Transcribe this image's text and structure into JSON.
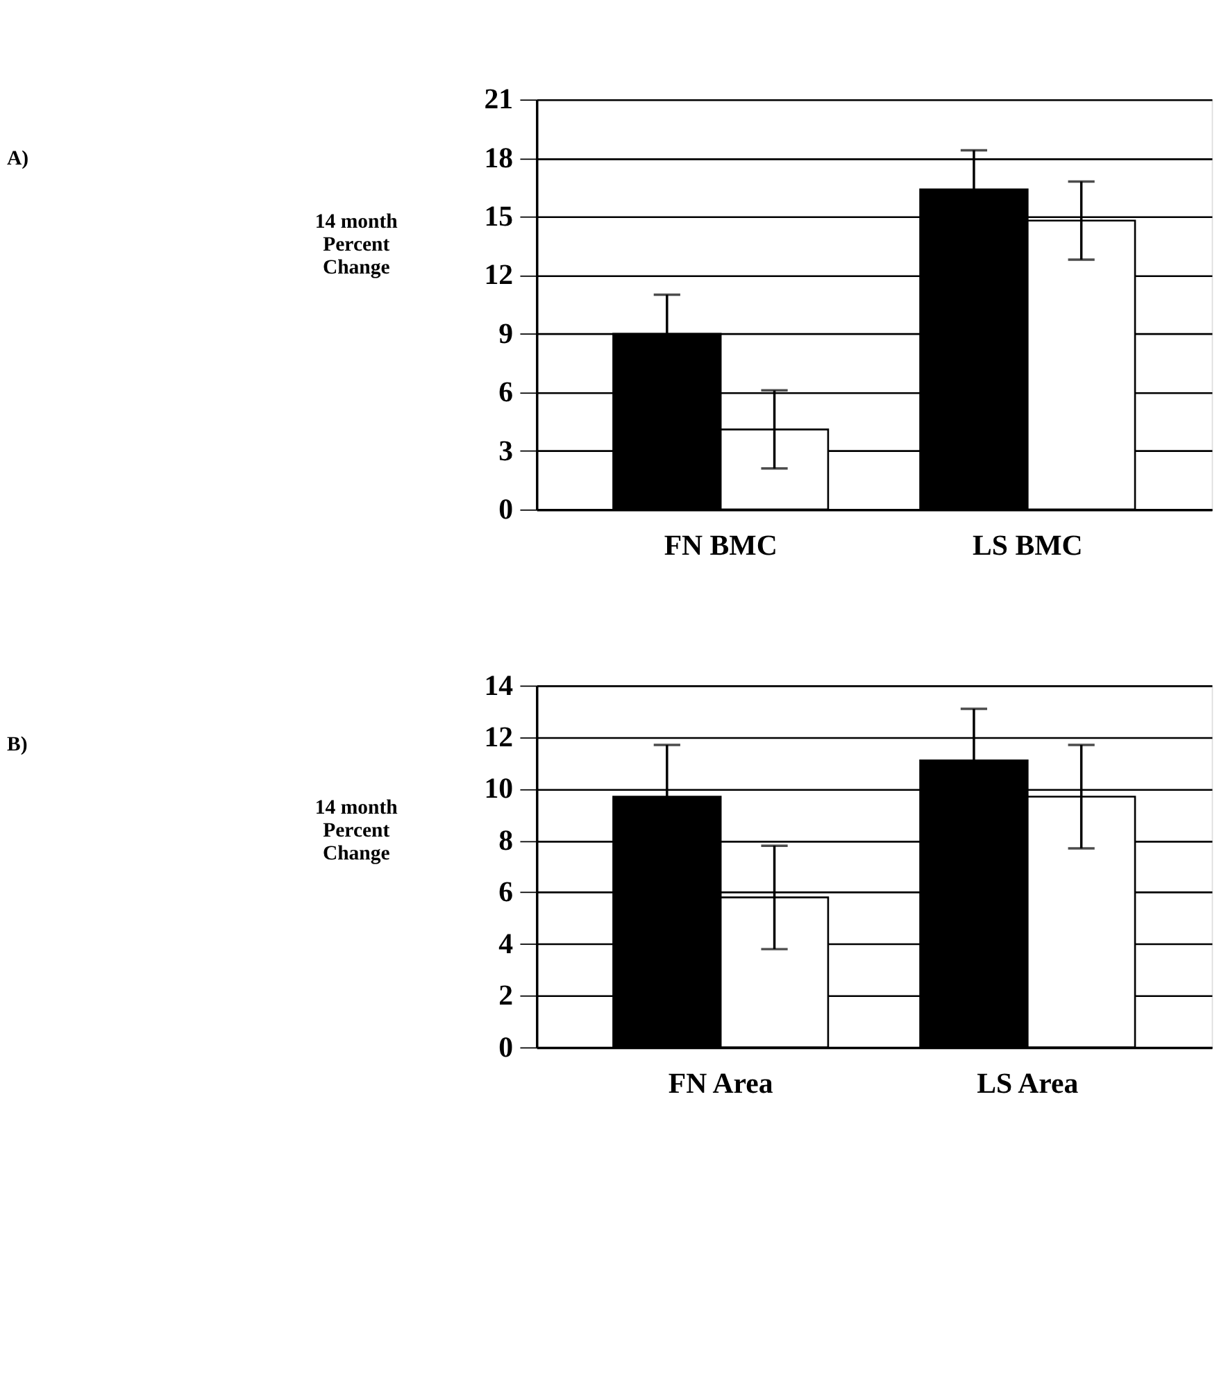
{
  "chart_data": [
    {
      "type": "bar",
      "annotations": [
        "A)"
      ],
      "ylabel": "14 month Percent Change",
      "categories": [
        "FN BMC",
        "LS BMC"
      ],
      "series": [
        {
          "color": "#000000",
          "values": [
            9.0,
            16.4
          ],
          "errors": [
            2.0,
            2.0
          ]
        },
        {
          "color": "#ffffff",
          "values": [
            4.1,
            14.8
          ],
          "errors": [
            2.0,
            2.0
          ]
        }
      ],
      "ylim": [
        0,
        21
      ],
      "yticks": [
        0,
        3,
        6,
        9,
        12,
        15,
        18,
        21
      ],
      "grid": "y",
      "legend": false
    },
    {
      "type": "bar",
      "annotations": [
        "B)"
      ],
      "ylabel": "14 month Percent Change",
      "categories": [
        "FN Area",
        "LS Area"
      ],
      "series": [
        {
          "color": "#000000",
          "values": [
            9.7,
            11.1
          ],
          "errors": [
            2.0,
            2.0
          ]
        },
        {
          "color": "#ffffff",
          "values": [
            5.8,
            9.7
          ],
          "errors": [
            2.0,
            2.0
          ]
        }
      ],
      "ylim": [
        0,
        14
      ],
      "yticks": [
        0,
        2,
        4,
        6,
        8,
        10,
        12,
        14
      ],
      "grid": "y",
      "legend": false
    }
  ]
}
